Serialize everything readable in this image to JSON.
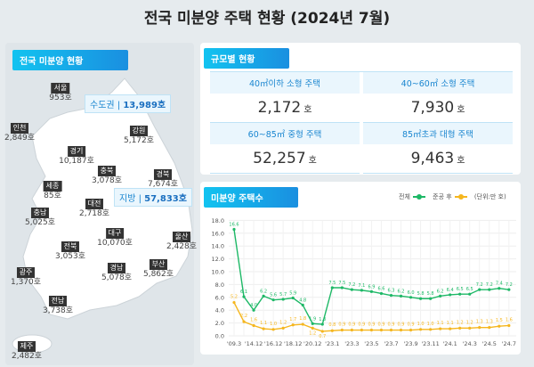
{
  "title": "전국 미분양 주택 현황 (2024년 7월)",
  "national": {
    "badge": "전국 미분양 현황",
    "capital": {
      "label": "수도권",
      "value": "13,989호"
    },
    "local": {
      "label": "지방",
      "value": "57,833호"
    },
    "regions": [
      {
        "name": "서울",
        "value": "953호"
      },
      {
        "name": "인천",
        "value": "2,849호"
      },
      {
        "name": "경기",
        "value": "10,187호"
      },
      {
        "name": "강원",
        "value": "5,172호"
      },
      {
        "name": "충북",
        "value": "3,078호"
      },
      {
        "name": "세종",
        "value": "85호"
      },
      {
        "name": "경북",
        "value": "7,674호"
      },
      {
        "name": "충남",
        "value": "5,025호"
      },
      {
        "name": "대전",
        "value": "2,718호"
      },
      {
        "name": "대구",
        "value": "10,070호"
      },
      {
        "name": "울산",
        "value": "2,428호"
      },
      {
        "name": "전북",
        "value": "3,053호"
      },
      {
        "name": "경남",
        "value": "5,078호"
      },
      {
        "name": "부산",
        "value": "5,862호"
      },
      {
        "name": "광주",
        "value": "1,370호"
      },
      {
        "name": "전남",
        "value": "3,738호"
      },
      {
        "name": "제주",
        "value": "2,482호"
      }
    ]
  },
  "size": {
    "badge": "규모별 현황",
    "unit": "호",
    "cells": [
      {
        "label": "40㎡이하 소형 주택",
        "value": "2,172"
      },
      {
        "label": "40~60㎡ 소형 주택",
        "value": "7,930"
      },
      {
        "label": "60~85㎡ 중형 주택",
        "value": "52,257"
      },
      {
        "label": "85㎡초과 대형 주택",
        "value": "9,463"
      }
    ]
  },
  "chart_data": {
    "type": "line",
    "title": "미분양 주택수",
    "unit_note": "(단위:만 호)",
    "ylim": [
      0,
      18
    ],
    "yticks": [
      "0.0",
      "2.0",
      "4.0",
      "6.0",
      "8.0",
      "10.0",
      "12.0",
      "14.0",
      "16.0",
      "18.0"
    ],
    "grid": true,
    "legend": "top-right",
    "x": [
      "'09.3",
      "'13.12",
      "'14.12",
      "'15.12",
      "'16.12",
      "'17.12",
      "'18.12",
      "'19.12",
      "'20.12",
      "'21.12",
      "'23.1",
      "'23.2",
      "'23.3",
      "'23.4",
      "'23.5",
      "'23.6",
      "'23.7",
      "'23.8",
      "'23.9",
      "'23.10",
      "'23.11",
      "'23.12",
      "'24.1",
      "'24.2",
      "'24.3",
      "'24.4",
      "'24.5",
      "'24.6",
      "'24.7"
    ],
    "xtick_labels": [
      "'09.3",
      "'14.12",
      "'16.12",
      "'18.12",
      "'20.12",
      "'23.1",
      "'23.3",
      "'23.5",
      "'23.7",
      "'23.9",
      "'23.11",
      "'24.1",
      "'24.3",
      "'24.5",
      "'24.7"
    ],
    "series": [
      {
        "name": "전체",
        "color": "#1db866",
        "values": [
          16.6,
          6.1,
          4.0,
          6.2,
          5.6,
          5.7,
          5.9,
          4.8,
          1.9,
          1.8,
          7.5,
          7.5,
          7.2,
          7.1,
          6.9,
          6.6,
          6.3,
          6.2,
          6.0,
          5.8,
          5.8,
          6.2,
          6.4,
          6.5,
          6.5,
          7.2,
          7.2,
          7.4,
          7.2
        ]
      },
      {
        "name": "준공 후",
        "color": "#f5b61e",
        "values": [
          5.2,
          2.2,
          1.6,
          1.1,
          1.0,
          1.2,
          1.7,
          1.8,
          1.2,
          0.7,
          0.8,
          0.9,
          0.9,
          0.9,
          0.9,
          0.9,
          0.9,
          0.9,
          0.9,
          1.0,
          1.0,
          1.1,
          1.1,
          1.2,
          1.2,
          1.3,
          1.3,
          1.5,
          1.6
        ]
      }
    ]
  }
}
